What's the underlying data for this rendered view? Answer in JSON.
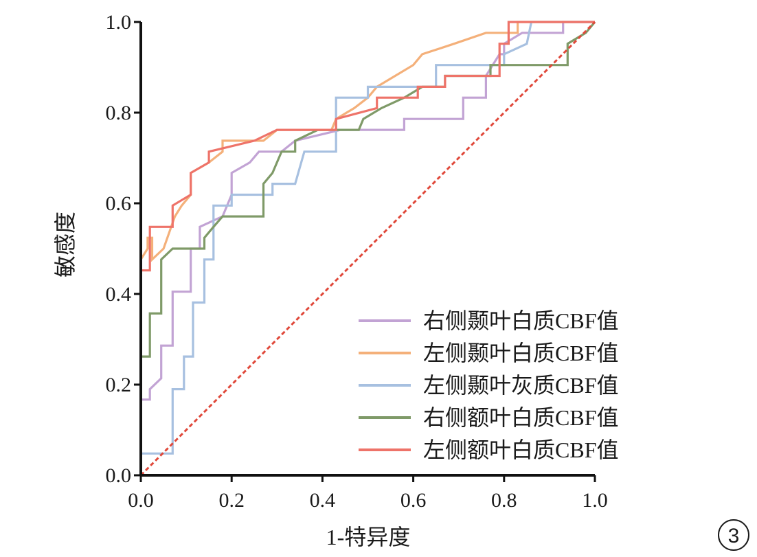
{
  "chart_data": {
    "type": "line",
    "title": "",
    "xlabel": "1-特异度",
    "ylabel": "敏感度",
    "xlim": [
      0,
      1
    ],
    "ylim": [
      0,
      1
    ],
    "x_ticks": [
      "0.0",
      "0.2",
      "0.4",
      "0.6",
      "0.8",
      "1.0"
    ],
    "y_ticks": [
      "0.0",
      "0.2",
      "0.4",
      "0.6",
      "0.8",
      "1.0"
    ],
    "grid": false,
    "legend_position": "bottom-right",
    "reference_line": {
      "color": "#e0483a",
      "style": "dashed",
      "points": [
        [
          0,
          0
        ],
        [
          1,
          1
        ]
      ]
    },
    "series": [
      {
        "name": "右侧颞叶白质CBF值",
        "color": "#c2a3d4",
        "points": [
          [
            0,
            0
          ],
          [
            0,
            0.167
          ],
          [
            0.02,
            0.167
          ],
          [
            0.02,
            0.19
          ],
          [
            0.045,
            0.214
          ],
          [
            0.045,
            0.286
          ],
          [
            0.07,
            0.286
          ],
          [
            0.07,
            0.405
          ],
          [
            0.11,
            0.405
          ],
          [
            0.11,
            0.5
          ],
          [
            0.13,
            0.5
          ],
          [
            0.13,
            0.548
          ],
          [
            0.18,
            0.571
          ],
          [
            0.2,
            0.619
          ],
          [
            0.2,
            0.667
          ],
          [
            0.24,
            0.69
          ],
          [
            0.26,
            0.714
          ],
          [
            0.31,
            0.714
          ],
          [
            0.34,
            0.738
          ],
          [
            0.44,
            0.762
          ],
          [
            0.58,
            0.762
          ],
          [
            0.58,
            0.786
          ],
          [
            0.71,
            0.786
          ],
          [
            0.71,
            0.833
          ],
          [
            0.76,
            0.833
          ],
          [
            0.76,
            0.881
          ],
          [
            0.79,
            0.929
          ],
          [
            0.8,
            0.929
          ],
          [
            0.8,
            0.952
          ],
          [
            0.84,
            0.976
          ],
          [
            0.93,
            0.976
          ],
          [
            0.93,
            1
          ],
          [
            1,
            1
          ]
        ]
      },
      {
        "name": "左侧颞叶白质CBF值",
        "color": "#f4b07a",
        "points": [
          [
            0,
            0
          ],
          [
            0,
            0.476
          ],
          [
            0.015,
            0.5
          ],
          [
            0.015,
            0.524
          ],
          [
            0.025,
            0.524
          ],
          [
            0.025,
            0.476
          ],
          [
            0.05,
            0.5
          ],
          [
            0.05,
            0.5
          ],
          [
            0.075,
            0.571
          ],
          [
            0.09,
            0.595
          ],
          [
            0.11,
            0.619
          ],
          [
            0.11,
            0.667
          ],
          [
            0.15,
            0.69
          ],
          [
            0.18,
            0.714
          ],
          [
            0.18,
            0.738
          ],
          [
            0.27,
            0.738
          ],
          [
            0.3,
            0.762
          ],
          [
            0.42,
            0.762
          ],
          [
            0.43,
            0.786
          ],
          [
            0.47,
            0.81
          ],
          [
            0.5,
            0.833
          ],
          [
            0.52,
            0.857
          ],
          [
            0.56,
            0.881
          ],
          [
            0.6,
            0.905
          ],
          [
            0.62,
            0.929
          ],
          [
            0.69,
            0.952
          ],
          [
            0.76,
            0.976
          ],
          [
            0.83,
            0.976
          ],
          [
            0.83,
            1
          ],
          [
            1,
            1
          ]
        ]
      },
      {
        "name": "左侧颞叶灰质CBF值",
        "color": "#a7c0e0",
        "points": [
          [
            0,
            0
          ],
          [
            0,
            0.048
          ],
          [
            0.07,
            0.048
          ],
          [
            0.07,
            0.19
          ],
          [
            0.095,
            0.19
          ],
          [
            0.095,
            0.262
          ],
          [
            0.115,
            0.262
          ],
          [
            0.115,
            0.381
          ],
          [
            0.14,
            0.381
          ],
          [
            0.14,
            0.476
          ],
          [
            0.16,
            0.476
          ],
          [
            0.16,
            0.571
          ],
          [
            0.16,
            0.595
          ],
          [
            0.2,
            0.595
          ],
          [
            0.2,
            0.619
          ],
          [
            0.29,
            0.619
          ],
          [
            0.29,
            0.643
          ],
          [
            0.34,
            0.643
          ],
          [
            0.36,
            0.714
          ],
          [
            0.43,
            0.714
          ],
          [
            0.43,
            0.833
          ],
          [
            0.5,
            0.833
          ],
          [
            0.5,
            0.857
          ],
          [
            0.65,
            0.857
          ],
          [
            0.65,
            0.905
          ],
          [
            0.8,
            0.905
          ],
          [
            0.8,
            0.929
          ],
          [
            0.85,
            0.952
          ],
          [
            0.86,
            1
          ],
          [
            1,
            1
          ]
        ]
      },
      {
        "name": "右侧额叶白质CBF值",
        "color": "#7f9a68",
        "points": [
          [
            0,
            0
          ],
          [
            0,
            0.262
          ],
          [
            0.02,
            0.262
          ],
          [
            0.02,
            0.357
          ],
          [
            0.045,
            0.357
          ],
          [
            0.045,
            0.476
          ],
          [
            0.07,
            0.5
          ],
          [
            0.14,
            0.5
          ],
          [
            0.14,
            0.524
          ],
          [
            0.16,
            0.548
          ],
          [
            0.18,
            0.571
          ],
          [
            0.27,
            0.571
          ],
          [
            0.27,
            0.643
          ],
          [
            0.29,
            0.667
          ],
          [
            0.31,
            0.714
          ],
          [
            0.34,
            0.714
          ],
          [
            0.34,
            0.738
          ],
          [
            0.39,
            0.762
          ],
          [
            0.48,
            0.762
          ],
          [
            0.49,
            0.786
          ],
          [
            0.53,
            0.81
          ],
          [
            0.58,
            0.833
          ],
          [
            0.62,
            0.857
          ],
          [
            0.67,
            0.857
          ],
          [
            0.67,
            0.881
          ],
          [
            0.77,
            0.881
          ],
          [
            0.77,
            0.905
          ],
          [
            0.94,
            0.905
          ],
          [
            0.94,
            0.952
          ],
          [
            0.98,
            0.976
          ],
          [
            1,
            1
          ]
        ]
      },
      {
        "name": "左侧额叶白质CBF值",
        "color": "#ee7369",
        "points": [
          [
            0,
            0
          ],
          [
            0,
            0.452
          ],
          [
            0.02,
            0.452
          ],
          [
            0.02,
            0.548
          ],
          [
            0.07,
            0.548
          ],
          [
            0.07,
            0.595
          ],
          [
            0.11,
            0.619
          ],
          [
            0.11,
            0.667
          ],
          [
            0.15,
            0.69
          ],
          [
            0.15,
            0.714
          ],
          [
            0.25,
            0.738
          ],
          [
            0.3,
            0.762
          ],
          [
            0.43,
            0.762
          ],
          [
            0.43,
            0.786
          ],
          [
            0.52,
            0.81
          ],
          [
            0.52,
            0.833
          ],
          [
            0.61,
            0.833
          ],
          [
            0.61,
            0.857
          ],
          [
            0.67,
            0.857
          ],
          [
            0.67,
            0.881
          ],
          [
            0.79,
            0.881
          ],
          [
            0.79,
            0.952
          ],
          [
            0.81,
            0.952
          ],
          [
            0.81,
            1
          ],
          [
            1,
            1
          ]
        ]
      }
    ]
  },
  "figure_badge": "3"
}
